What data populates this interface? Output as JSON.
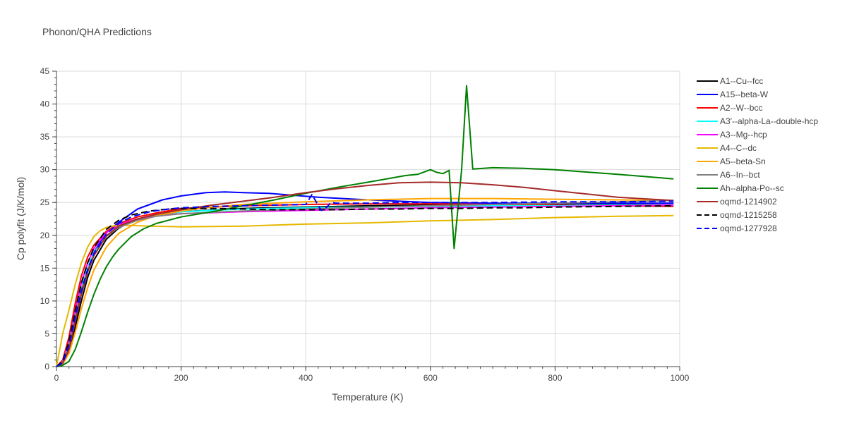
{
  "chart_data": {
    "type": "line",
    "title": "Phonon/QHA Predictions",
    "xlabel": "Temperature (K)",
    "ylabel": "Cp polyfit (J/K/mol)",
    "xlim": [
      0,
      1000
    ],
    "ylim": [
      0,
      45
    ],
    "xticks": [
      0,
      200,
      400,
      600,
      800,
      1000
    ],
    "yticks": [
      0,
      5,
      10,
      15,
      20,
      25,
      30,
      35,
      40,
      45
    ],
    "grid": true,
    "legend_position": "right",
    "series": [
      {
        "name": "A1--Cu--fcc",
        "color": "#000000",
        "dash": "solid",
        "x": [
          0,
          10,
          20,
          30,
          40,
          50,
          60,
          80,
          100,
          120,
          150,
          200,
          300,
          400,
          500,
          600,
          700,
          800,
          900,
          990
        ],
        "y": [
          0,
          0.4,
          2.2,
          6,
          10,
          13.6,
          16.2,
          19.4,
          21.1,
          22.1,
          22.9,
          23.6,
          24.1,
          24.3,
          24.5,
          24.6,
          24.7,
          24.8,
          24.8,
          24.9
        ]
      },
      {
        "name": "A15--beta-W",
        "color": "#0000ff",
        "dash": "solid",
        "x": [
          0,
          10,
          20,
          30,
          40,
          50,
          60,
          80,
          100,
          130,
          170,
          200,
          240,
          270,
          300,
          340,
          380,
          420,
          500,
          600,
          700,
          800,
          900,
          990
        ],
        "y": [
          0,
          0.6,
          2.8,
          7,
          11.3,
          14.8,
          17.4,
          20.4,
          22,
          24,
          25.4,
          26,
          26.5,
          26.6,
          26.5,
          26.4,
          26.1,
          25.8,
          25.4,
          25,
          24.9,
          24.9,
          24.9,
          24.9
        ]
      },
      {
        "name": "A2--W--bcc",
        "color": "#ff0000",
        "dash": "solid",
        "x": [
          0,
          10,
          20,
          30,
          40,
          50,
          60,
          80,
          100,
          130,
          160,
          200,
          300,
          400,
          500,
          600,
          700,
          800,
          900,
          990
        ],
        "y": [
          0,
          1,
          4.5,
          9.6,
          13.8,
          16.7,
          18.5,
          20.6,
          21.8,
          22.8,
          23.4,
          24.1,
          24.5,
          24.7,
          24.8,
          24.8,
          24.7,
          24.6,
          24.5,
          24.4
        ]
      },
      {
        "name": "A3'--alpha-La--double-hcp",
        "color": "#00ffff",
        "dash": "solid",
        "x": [
          0,
          10,
          20,
          30,
          40,
          50,
          60,
          80,
          100,
          130,
          160,
          200,
          300,
          400,
          500,
          600,
          700,
          800,
          900,
          990
        ],
        "y": [
          0,
          0.7,
          3.5,
          8,
          12,
          15,
          17.3,
          19.9,
          21.3,
          22.5,
          23.1,
          23.6,
          24,
          24.2,
          24.3,
          24.4,
          24.5,
          24.5,
          24.6,
          24.6
        ]
      },
      {
        "name": "A3--Mg--hcp",
        "color": "#ff00ff",
        "dash": "solid",
        "x": [
          0,
          10,
          20,
          30,
          40,
          50,
          60,
          80,
          100,
          130,
          160,
          200,
          300,
          400,
          500,
          600,
          700,
          800,
          900,
          990
        ],
        "y": [
          0,
          0.8,
          3.8,
          8.6,
          12.8,
          15.8,
          18,
          20.4,
          21.6,
          22.5,
          23,
          23.3,
          23.6,
          23.8,
          24,
          24.2,
          24.3,
          24.4,
          24.5,
          24.6
        ]
      },
      {
        "name": "A4--C--dc",
        "color": "#e6b800",
        "dash": "solid",
        "x": [
          0,
          5,
          10,
          20,
          30,
          40,
          50,
          60,
          70,
          80,
          90,
          100,
          120,
          150,
          200,
          300,
          400,
          500,
          600,
          700,
          800,
          900,
          990
        ],
        "y": [
          0,
          2.5,
          5,
          8.6,
          12.5,
          15.8,
          18.2,
          19.8,
          20.7,
          21.2,
          21.4,
          21.5,
          21.5,
          21.4,
          21.3,
          21.4,
          21.7,
          21.9,
          22.2,
          22.4,
          22.7,
          22.9,
          23
        ]
      },
      {
        "name": "A5--beta-Sn",
        "color": "#ffa500",
        "dash": "solid",
        "x": [
          0,
          10,
          20,
          30,
          40,
          50,
          60,
          80,
          100,
          130,
          160,
          200,
          250,
          300,
          400,
          500,
          600,
          700,
          800,
          900,
          990
        ],
        "y": [
          0,
          0.4,
          2,
          5.2,
          8.8,
          12,
          14.7,
          18.2,
          20.3,
          22,
          23,
          23.7,
          24.3,
          24.7,
          25.1,
          25.4,
          25.6,
          25.6,
          25.5,
          25.4,
          25.3
        ]
      },
      {
        "name": "A6--In--bct",
        "color": "#808080",
        "dash": "solid",
        "x": [
          0,
          10,
          20,
          30,
          40,
          50,
          60,
          80,
          100,
          130,
          160,
          200,
          300,
          400,
          500,
          600,
          700,
          800,
          900,
          990
        ],
        "y": [
          0,
          0.7,
          3.4,
          7.8,
          11.7,
          14.7,
          17,
          19.8,
          21.2,
          22.3,
          22.9,
          23.3,
          23.7,
          24,
          24.3,
          24.5,
          24.7,
          24.9,
          25.1,
          25.3
        ]
      },
      {
        "name": "Ah--alpha-Po--sc",
        "color": "#008000",
        "dash": "solid",
        "x": [
          0,
          10,
          20,
          30,
          40,
          50,
          60,
          70,
          80,
          90,
          100,
          120,
          140,
          160,
          200,
          250,
          300,
          350,
          400,
          450,
          500,
          560,
          580,
          600,
          610,
          620,
          630,
          638,
          650,
          658,
          668,
          700,
          750,
          800,
          900,
          990
        ],
        "y": [
          0,
          0.2,
          0.8,
          2.6,
          5.3,
          8.3,
          11,
          13.3,
          15.2,
          16.7,
          17.9,
          19.8,
          21,
          21.8,
          22.8,
          23.6,
          24.5,
          25.4,
          26.4,
          27.3,
          28.1,
          29.1,
          29.3,
          30,
          29.6,
          29.4,
          29.9,
          18,
          30,
          42.8,
          30.1,
          30.3,
          30.2,
          30,
          29.3,
          28.6
        ]
      },
      {
        "name": "oqmd-1214902",
        "color": "#a52a2a",
        "dash": "solid",
        "x": [
          0,
          10,
          20,
          30,
          40,
          50,
          60,
          80,
          100,
          130,
          160,
          200,
          250,
          300,
          350,
          400,
          450,
          500,
          550,
          600,
          650,
          700,
          750,
          800,
          900,
          990
        ],
        "y": [
          0,
          0.5,
          2.6,
          6.8,
          11,
          14.4,
          16.9,
          19.9,
          21.4,
          22.5,
          23.2,
          23.9,
          24.6,
          25.2,
          25.8,
          26.5,
          27.1,
          27.6,
          28,
          28.1,
          28,
          27.7,
          27.3,
          26.8,
          25.8,
          25.3
        ]
      },
      {
        "name": "oqmd-1215258",
        "color": "#000000",
        "dash": "dash",
        "x": [
          0,
          10,
          20,
          30,
          40,
          50,
          60,
          80,
          100,
          120,
          150,
          180,
          200,
          250,
          300,
          350,
          400,
          450,
          500,
          550,
          600,
          650,
          700,
          750,
          800,
          900,
          990
        ],
        "y": [
          0,
          0.8,
          3.8,
          8.5,
          12.7,
          15.8,
          18.1,
          20.9,
          22.3,
          23.1,
          23.7,
          24,
          24.1,
          24.1,
          24,
          23.9,
          23.9,
          23.9,
          24,
          24,
          24.1,
          24.1,
          24.2,
          24.2,
          24.3,
          24.4,
          24.5
        ]
      },
      {
        "name": "oqmd-1277928",
        "color": "#0000ff",
        "dash": "dash",
        "x": [
          0,
          10,
          20,
          30,
          40,
          50,
          60,
          80,
          100,
          120,
          150,
          180,
          200,
          250,
          300,
          350,
          400,
          410,
          415,
          420,
          425,
          430,
          435,
          440,
          450,
          500,
          550,
          600,
          700,
          800,
          900,
          990
        ],
        "y": [
          0,
          0.6,
          3.2,
          7.5,
          11.5,
          14.8,
          17.2,
          20.2,
          21.8,
          22.8,
          23.6,
          24,
          24.2,
          24.4,
          24.5,
          24.6,
          24.7,
          26.2,
          25.4,
          24.5,
          23.8,
          24,
          24.4,
          25,
          24.9,
          24.9,
          25,
          25,
          25,
          25.1,
          25.1,
          25.2
        ]
      }
    ]
  }
}
